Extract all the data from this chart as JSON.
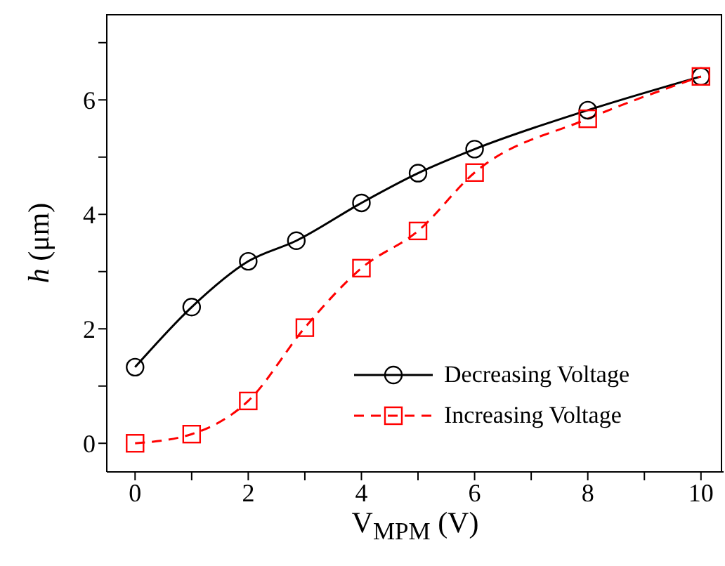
{
  "chart_data": {
    "type": "line",
    "xlabel": "V$_{MPM}$ (V)",
    "ylabel": "h (μm)",
    "xlim": [
      -0.5,
      10.4
    ],
    "ylim": [
      -0.5,
      7.5
    ],
    "xticks": [
      0,
      {
        "value": 1,
        "label": null
      },
      2,
      {
        "value": 3,
        "label": null
      },
      4,
      {
        "value": 5,
        "label": null
      },
      6,
      {
        "value": 7,
        "label": null
      },
      8,
      {
        "value": 9,
        "label": null
      },
      10
    ],
    "yticks": [
      0,
      {
        "value": 1,
        "label": null
      },
      2,
      {
        "value": 3,
        "label": null
      },
      4,
      {
        "value": 5,
        "label": null
      },
      6,
      {
        "value": 7,
        "label": null
      }
    ],
    "legend": "bottom right",
    "grid": false,
    "series": [
      {
        "name": "Decreasing Voltage",
        "color": "#000000",
        "marker": "circle",
        "line_style": "solid",
        "x": [
          0,
          1,
          2,
          2.85,
          4,
          5,
          6,
          8,
          10
        ],
        "values": [
          1.33,
          2.38,
          3.18,
          3.54,
          4.2,
          4.72,
          5.14,
          5.82,
          6.41
        ]
      },
      {
        "name": "Increasing Voltage",
        "color": "#ff0000",
        "marker": "square",
        "line_style": "dashed",
        "x": [
          0,
          1,
          2,
          3,
          4,
          5,
          6,
          8,
          10
        ],
        "values": [
          0,
          0.16,
          0.74,
          2.02,
          3.06,
          3.71,
          4.73,
          5.67,
          6.41
        ]
      }
    ]
  }
}
